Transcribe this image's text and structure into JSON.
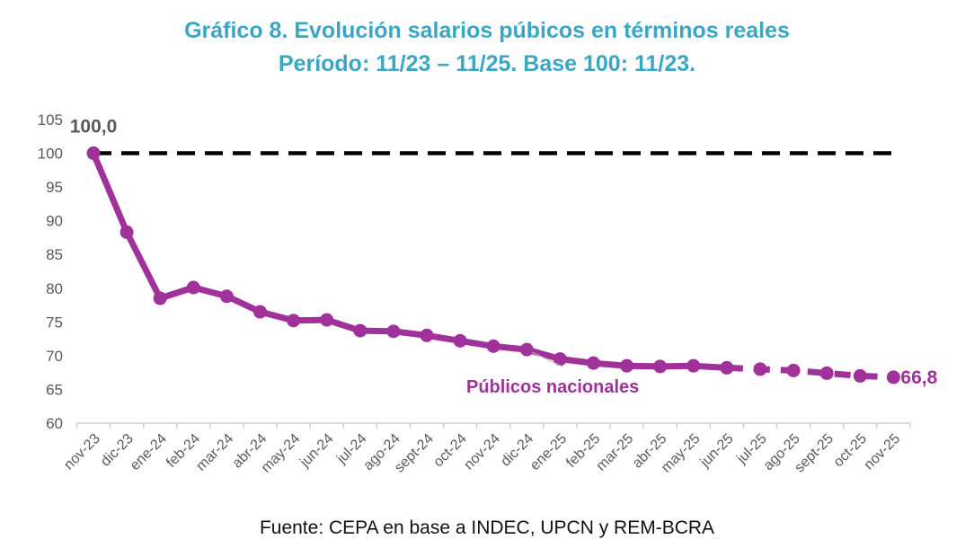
{
  "title_line_1": "Gráfico 8. Evolución salarios púbicos en términos reales",
  "title_line_2": "Período: 11/23 – 11/25. Base 100: 11/23.",
  "source": "Fuente: CEPA en base a INDEC, UPCN y REM-BCRA",
  "colors": {
    "title": "#3aa6c6",
    "series": "#a0309a",
    "baseline": "#000000",
    "axis_text": "#595959"
  },
  "chart_data": {
    "type": "line",
    "title": "Gráfico 8. Evolución salarios púbicos en términos reales",
    "subtitle": "Período: 11/23 – 11/25. Base 100: 11/23.",
    "xlabel": "",
    "ylabel": "",
    "ylim": [
      60,
      105
    ],
    "yticks": [
      "60",
      "65",
      "70",
      "75",
      "80",
      "85",
      "90",
      "95",
      "100",
      "105"
    ],
    "grid": false,
    "categories": [
      "nov-23",
      "dic-23",
      "ene-24",
      "feb-24",
      "mar-24",
      "abr-24",
      "may-24",
      "jun-24",
      "jul-24",
      "ago-24",
      "sept-24",
      "oct-24",
      "nov-24",
      "dic-24",
      "ene-25",
      "feb-25",
      "mar-25",
      "abr-25",
      "may-25",
      "jun-25",
      "jul-25",
      "ago-25",
      "sept-25",
      "oct-25",
      "nov-25"
    ],
    "series": [
      {
        "name": "Públicos nacionales",
        "values": [
          100.0,
          88.3,
          78.5,
          80.1,
          78.8,
          76.5,
          75.2,
          75.3,
          73.7,
          73.6,
          73.0,
          72.2,
          71.4,
          70.9,
          69.5,
          68.9,
          68.5,
          68.4,
          68.5,
          68.2,
          68.0,
          67.8,
          67.4,
          67.0,
          66.8
        ],
        "solid_until": "jun-25",
        "dashed_from": "jun-25",
        "label": "Públicos nacionales",
        "label_anchor": "dic-24"
      },
      {
        "name": "Base 100",
        "values": [
          100,
          100,
          100,
          100,
          100,
          100,
          100,
          100,
          100,
          100,
          100,
          100,
          100,
          100,
          100,
          100,
          100,
          100,
          100,
          100,
          100,
          100,
          100,
          100,
          100
        ],
        "style": "dashed"
      }
    ],
    "data_labels": [
      {
        "category": "nov-23",
        "text": "100,0"
      },
      {
        "category": "nov-25",
        "text": "66,8"
      }
    ]
  }
}
